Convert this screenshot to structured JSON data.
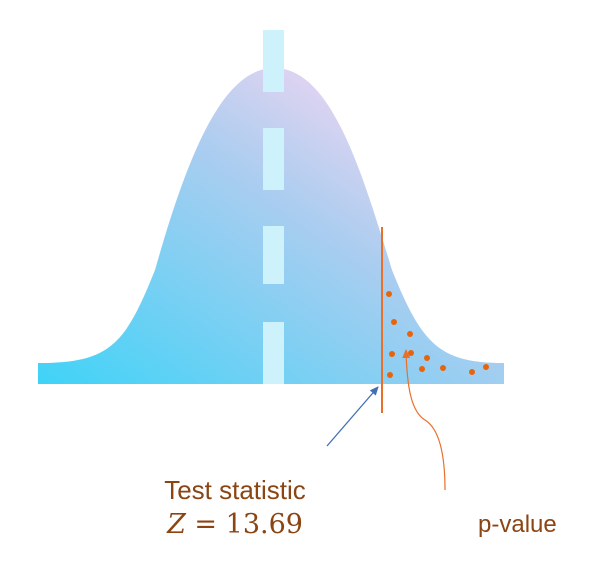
{
  "labels": {
    "test_statistic": "Test statistic",
    "z_var": "Z",
    "z_eq": "=",
    "z_value": "13.69",
    "p_value": "p-value"
  },
  "colors": {
    "text": "#8b4513",
    "critical_line": "#e8702a",
    "dots": "#e8640c",
    "arrow_blue": "#3f6fb5",
    "curve_gradient_left": "#3fd3f7",
    "curve_gradient_top": "#e4d4f1",
    "curve_gradient_right": "#bcd6f2",
    "center_dash": "#cdf2fb"
  }
}
